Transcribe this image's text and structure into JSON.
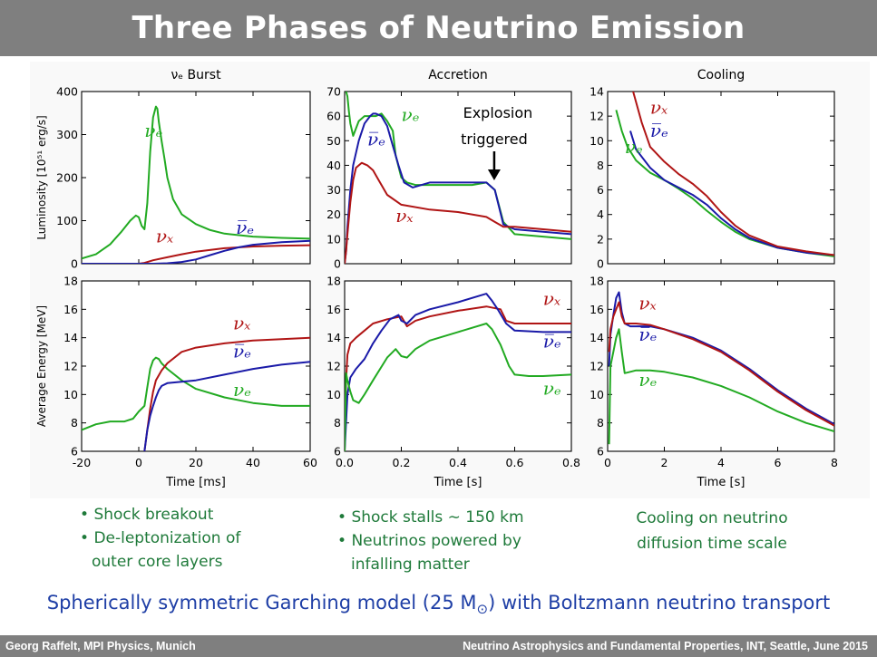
{
  "slide": {
    "title": "Three Phases of Neutrino Emission",
    "subtitle_pre": "Spherically symmetric Garching model (25 M",
    "subtitle_sym": "⊙",
    "subtitle_post": ") with Boltzmann neutrino transport",
    "footer_left": "Georg Raffelt, MPI Physics, Munich",
    "footer_right": "Neutrino Astrophysics and Fundamental Properties, INT, Seattle, June 2015",
    "burst_bullets": [
      "Shock breakout",
      "De-leptonization of",
      "outer core layers"
    ],
    "accretion_bullets": [
      "Shock stalls ∼ 150 km",
      "Neutrinos powered by",
      "infalling matter"
    ],
    "cooling_note": [
      "Cooling on neutrino",
      "diffusion time scale"
    ],
    "explosion_note": [
      "Explosion",
      "triggered"
    ]
  },
  "colors": {
    "nu_e": "#22aa22",
    "nubar_e": "#1a1aa8",
    "nu_x": "#b01515",
    "title_bar": "#7f7f7f",
    "subtitle": "#1f3fa6",
    "bullets": "#1f7a3a"
  },
  "chart_data": [
    {
      "type": "line",
      "panel": "burst-luminosity",
      "title": "νₑ Burst",
      "ylabel": "Luminosity [10⁵¹ erg/s]",
      "xlim": [
        -20,
        60
      ],
      "ylim": [
        0,
        400
      ],
      "yticks": [
        0,
        100,
        200,
        300,
        400
      ],
      "xticks": [],
      "series": [
        {
          "name": "νₑ",
          "color": "#22aa22",
          "x": [
            -20,
            -15,
            -10,
            -6,
            -3,
            -1,
            0,
            1,
            2,
            3,
            4,
            5,
            6,
            6.5,
            7,
            8,
            9,
            10,
            12,
            15,
            20,
            25,
            30,
            40,
            50,
            60
          ],
          "y": [
            12,
            22,
            45,
            75,
            100,
            112,
            108,
            88,
            80,
            140,
            260,
            340,
            365,
            360,
            330,
            285,
            245,
            200,
            150,
            115,
            92,
            78,
            70,
            63,
            60,
            58
          ]
        },
        {
          "name": "νₓ",
          "color": "#b01515",
          "x": [
            -20,
            0,
            2,
            5,
            10,
            15,
            20,
            30,
            40,
            50,
            60
          ],
          "y": [
            0,
            0,
            2,
            8,
            15,
            22,
            28,
            36,
            40,
            42,
            43
          ]
        },
        {
          "name": "ν̅ₑ",
          "color": "#1a1aa8",
          "x": [
            -20,
            0,
            5,
            10,
            15,
            20,
            25,
            30,
            35,
            40,
            50,
            60
          ],
          "y": [
            0,
            0,
            0,
            1,
            4,
            10,
            20,
            30,
            38,
            44,
            50,
            53
          ]
        }
      ],
      "labels": [
        {
          "text": "νₑ",
          "color": "#22aa22",
          "x": 2,
          "y": 295
        },
        {
          "text": "νₓ",
          "color": "#b01515",
          "x": 6,
          "y": 50
        },
        {
          "text": "ν̅ₑ",
          "color": "#1a1aa8",
          "x": 34,
          "y": 70
        }
      ]
    },
    {
      "type": "line",
      "panel": "accretion-luminosity",
      "title": "Accretion",
      "ylabel": "",
      "xlim": [
        0,
        0.8
      ],
      "ylim": [
        0,
        70
      ],
      "yticks": [
        0,
        10,
        20,
        30,
        40,
        50,
        60,
        70
      ],
      "xticks": [],
      "series": [
        {
          "name": "νₑ",
          "color": "#22aa22",
          "x": [
            0.005,
            0.01,
            0.015,
            0.02,
            0.03,
            0.05,
            0.07,
            0.09,
            0.11,
            0.13,
            0.15,
            0.17,
            0.18,
            0.2,
            0.22,
            0.25,
            0.3,
            0.4,
            0.45,
            0.5,
            0.53,
            0.56,
            0.6,
            0.7,
            0.8
          ],
          "y": [
            70,
            68,
            62,
            57,
            52,
            58,
            60,
            60,
            60,
            61,
            58,
            54,
            44,
            35,
            33,
            32,
            32,
            32,
            32,
            33,
            30,
            17,
            12,
            11,
            10
          ]
        },
        {
          "name": "ν̅ₑ",
          "color": "#1a1aa8",
          "x": [
            0,
            0.005,
            0.01,
            0.02,
            0.03,
            0.05,
            0.07,
            0.09,
            0.1,
            0.11,
            0.13,
            0.15,
            0.17,
            0.19,
            0.21,
            0.24,
            0.3,
            0.4,
            0.45,
            0.5,
            0.53,
            0.56,
            0.6,
            0.7,
            0.8
          ],
          "y": [
            0,
            5,
            15,
            30,
            40,
            50,
            57,
            60,
            61,
            61,
            60,
            56,
            48,
            40,
            33,
            31,
            33,
            33,
            33,
            33,
            30,
            16,
            14,
            13,
            12
          ]
        },
        {
          "name": "νₓ",
          "color": "#b01515",
          "x": [
            0,
            0.005,
            0.01,
            0.02,
            0.03,
            0.04,
            0.06,
            0.08,
            0.1,
            0.12,
            0.15,
            0.2,
            0.3,
            0.4,
            0.5,
            0.53,
            0.56,
            0.6,
            0.7,
            0.8
          ],
          "y": [
            0,
            5,
            12,
            25,
            34,
            39,
            41,
            40,
            38,
            34,
            28,
            24,
            22,
            21,
            19,
            17,
            15,
            15,
            14,
            13
          ]
        }
      ],
      "labels": [
        {
          "text": "νₑ",
          "color": "#22aa22",
          "x": 0.2,
          "y": 58
        },
        {
          "text": "ν̅ₑ",
          "color": "#1a1aa8",
          "x": 0.08,
          "y": 48
        },
        {
          "text": "νₓ",
          "color": "#b01515",
          "x": 0.18,
          "y": 17
        }
      ]
    },
    {
      "type": "line",
      "panel": "cooling-luminosity",
      "title": "Cooling",
      "ylabel": "",
      "xlim": [
        0,
        8
      ],
      "ylim": [
        0,
        14
      ],
      "yticks": [
        0,
        2,
        4,
        6,
        8,
        10,
        12,
        14
      ],
      "xticks": [],
      "series": [
        {
          "name": "νₑ",
          "color": "#22aa22",
          "x": [
            0.3,
            0.5,
            0.7,
            1,
            1.5,
            2,
            2.5,
            3,
            3.5,
            4,
            4.5,
            5,
            6,
            7,
            8
          ],
          "y": [
            12.5,
            10.8,
            9.5,
            8.4,
            7.4,
            6.8,
            6.1,
            5.3,
            4.3,
            3.4,
            2.6,
            2.0,
            1.3,
            0.9,
            0.6
          ]
        },
        {
          "name": "ν̅ₑ",
          "color": "#1a1aa8",
          "x": [
            0.8,
            1,
            1.5,
            2,
            2.5,
            3,
            3.5,
            4,
            4.5,
            5,
            6,
            7,
            8
          ],
          "y": [
            10.8,
            9.3,
            7.8,
            6.8,
            6.2,
            5.6,
            4.8,
            3.7,
            2.8,
            2.1,
            1.3,
            0.9,
            0.7
          ]
        },
        {
          "name": "νₓ",
          "color": "#b01515",
          "x": [
            0.9,
            1.2,
            1.5,
            2,
            2.5,
            3,
            3.5,
            4,
            4.5,
            5,
            6,
            7,
            8
          ],
          "y": [
            14,
            11.5,
            9.5,
            8.3,
            7.3,
            6.5,
            5.5,
            4.2,
            3.1,
            2.3,
            1.4,
            1.0,
            0.7
          ]
        }
      ],
      "labels": [
        {
          "text": "νₓ",
          "color": "#b01515",
          "x": 1.5,
          "y": 12.2
        },
        {
          "text": "ν̅ₑ",
          "color": "#1a1aa8",
          "x": 1.5,
          "y": 10.3
        },
        {
          "text": "νₑ",
          "color": "#22aa22",
          "x": 0.6,
          "y": 9.0
        }
      ]
    },
    {
      "type": "line",
      "panel": "burst-energy",
      "title": "",
      "xlabel": "Time [ms]",
      "ylabel": "Average Energy [MeV]",
      "xlim": [
        -20,
        60
      ],
      "ylim": [
        6,
        18
      ],
      "yticks": [
        6,
        8,
        10,
        12,
        14,
        16,
        18
      ],
      "xticks": [
        -20,
        0,
        20,
        40,
        60
      ],
      "series": [
        {
          "name": "νₑ",
          "color": "#22aa22",
          "x": [
            -20,
            -15,
            -10,
            -5,
            -2,
            0,
            2,
            3,
            4,
            5,
            6,
            7,
            8,
            10,
            15,
            20,
            30,
            40,
            50,
            60
          ],
          "y": [
            7.5,
            7.9,
            8.1,
            8.1,
            8.3,
            8.8,
            9.2,
            10.5,
            11.8,
            12.4,
            12.6,
            12.5,
            12.2,
            11.8,
            11.0,
            10.4,
            9.8,
            9.4,
            9.2,
            9.2
          ]
        },
        {
          "name": "νₓ",
          "color": "#b01515",
          "x": [
            2,
            3,
            4,
            5,
            6,
            8,
            10,
            15,
            20,
            30,
            40,
            50,
            60
          ],
          "y": [
            6,
            7.5,
            9,
            10.2,
            11.0,
            11.7,
            12.2,
            13.0,
            13.3,
            13.6,
            13.8,
            13.9,
            14.0
          ]
        },
        {
          "name": "ν̅ₑ",
          "color": "#1a1aa8",
          "x": [
            2,
            3,
            4,
            5,
            6,
            7,
            8,
            10,
            15,
            20,
            30,
            40,
            50,
            60
          ],
          "y": [
            6,
            7.5,
            8.5,
            9.2,
            9.8,
            10.3,
            10.6,
            10.8,
            10.9,
            11.0,
            11.4,
            11.8,
            12.1,
            12.3
          ]
        }
      ],
      "labels": [
        {
          "text": "νₓ",
          "color": "#b01515",
          "x": 33,
          "y": 14.6
        },
        {
          "text": "ν̅ₑ",
          "color": "#1a1aa8",
          "x": 33,
          "y": 12.6
        },
        {
          "text": "νₑ",
          "color": "#22aa22",
          "x": 33,
          "y": 9.9
        }
      ]
    },
    {
      "type": "line",
      "panel": "accretion-energy",
      "title": "",
      "xlabel": "Time [s]",
      "ylabel": "",
      "xlim": [
        0,
        0.8
      ],
      "ylim": [
        6,
        18
      ],
      "yticks": [
        6,
        8,
        10,
        12,
        14,
        16,
        18
      ],
      "xticks": [
        0.0,
        0.2,
        0.4,
        0.6,
        0.8
      ],
      "series": [
        {
          "name": "νₓ",
          "color": "#b01515",
          "x": [
            0,
            0.005,
            0.01,
            0.02,
            0.04,
            0.07,
            0.1,
            0.15,
            0.2,
            0.22,
            0.25,
            0.3,
            0.4,
            0.5,
            0.55,
            0.57,
            0.6,
            0.7,
            0.8
          ],
          "y": [
            6,
            11,
            12.8,
            13.6,
            14.0,
            14.5,
            15.0,
            15.3,
            15.5,
            14.8,
            15.2,
            15.5,
            15.9,
            16.2,
            16.0,
            15.2,
            15.0,
            15.0,
            15.0
          ]
        },
        {
          "name": "ν̅ₑ",
          "color": "#1a1aa8",
          "x": [
            0,
            0.01,
            0.02,
            0.04,
            0.07,
            0.1,
            0.13,
            0.16,
            0.19,
            0.2,
            0.22,
            0.25,
            0.3,
            0.4,
            0.5,
            0.52,
            0.54,
            0.57,
            0.6,
            0.7,
            0.8
          ],
          "y": [
            6,
            10,
            11.2,
            11.8,
            12.5,
            13.6,
            14.5,
            15.3,
            15.6,
            15.2,
            15.0,
            15.6,
            16.0,
            16.5,
            17.1,
            16.6,
            16.0,
            15.0,
            14.5,
            14.4,
            14.4
          ]
        },
        {
          "name": "νₑ",
          "color": "#22aa22",
          "x": [
            0,
            0.005,
            0.01,
            0.02,
            0.03,
            0.05,
            0.07,
            0.1,
            0.15,
            0.18,
            0.2,
            0.22,
            0.25,
            0.3,
            0.4,
            0.5,
            0.52,
            0.55,
            0.58,
            0.6,
            0.65,
            0.7,
            0.8
          ],
          "y": [
            6,
            11.5,
            11.0,
            10.2,
            9.6,
            9.4,
            10.0,
            11.0,
            12.6,
            13.2,
            12.7,
            12.6,
            13.2,
            13.8,
            14.4,
            15.0,
            14.6,
            13.5,
            12.0,
            11.4,
            11.3,
            11.3,
            11.4
          ]
        }
      ],
      "labels": [
        {
          "text": "νₓ",
          "color": "#b01515",
          "x": 0.7,
          "y": 16.3
        },
        {
          "text": "ν̅ₑ",
          "color": "#1a1aa8",
          "x": 0.7,
          "y": 13.3
        },
        {
          "text": "νₑ",
          "color": "#22aa22",
          "x": 0.7,
          "y": 10.0
        }
      ]
    },
    {
      "type": "line",
      "panel": "cooling-energy",
      "title": "",
      "xlabel": "Time [s]",
      "ylabel": "",
      "xlim": [
        0,
        8
      ],
      "ylim": [
        6,
        18
      ],
      "yticks": [
        6,
        8,
        10,
        12,
        14,
        16,
        18
      ],
      "xticks": [
        0,
        2,
        4,
        6,
        8
      ],
      "series": [
        {
          "name": "ν̅ₑ",
          "color": "#1a1aa8",
          "x": [
            0.05,
            0.1,
            0.2,
            0.3,
            0.4,
            0.5,
            0.6,
            0.8,
            1,
            1.5,
            2,
            3,
            4,
            5,
            6,
            7,
            8
          ],
          "y": [
            12,
            14.2,
            15.6,
            16.8,
            17.2,
            15.8,
            15.0,
            14.8,
            14.8,
            14.8,
            14.6,
            14.0,
            13.1,
            11.8,
            10.3,
            9.0,
            7.9
          ]
        },
        {
          "name": "νₓ",
          "color": "#b01515",
          "x": [
            0.05,
            0.1,
            0.2,
            0.3,
            0.4,
            0.5,
            0.6,
            0.8,
            1,
            1.5,
            2,
            3,
            4,
            5,
            6,
            7,
            8
          ],
          "y": [
            13,
            14.6,
            15.5,
            16.0,
            16.5,
            15.5,
            15.0,
            15.0,
            15.0,
            14.9,
            14.6,
            13.9,
            13.0,
            11.7,
            10.2,
            8.9,
            7.8
          ]
        },
        {
          "name": "νₑ",
          "color": "#22aa22",
          "x": [
            0.05,
            0.1,
            0.2,
            0.3,
            0.4,
            0.5,
            0.6,
            0.8,
            1,
            1.5,
            2,
            3,
            4,
            5,
            6,
            7,
            8
          ],
          "y": [
            6.5,
            12,
            13.0,
            14.0,
            14.6,
            13.0,
            11.5,
            11.6,
            11.7,
            11.7,
            11.6,
            11.2,
            10.6,
            9.8,
            8.8,
            8.0,
            7.4
          ]
        }
      ],
      "labels": [
        {
          "text": "νₓ",
          "color": "#b01515",
          "x": 1.1,
          "y": 16.0
        },
        {
          "text": "ν̅ₑ",
          "color": "#1a1aa8",
          "x": 1.1,
          "y": 13.8
        },
        {
          "text": "νₑ",
          "color": "#22aa22",
          "x": 1.1,
          "y": 10.6
        }
      ]
    }
  ]
}
